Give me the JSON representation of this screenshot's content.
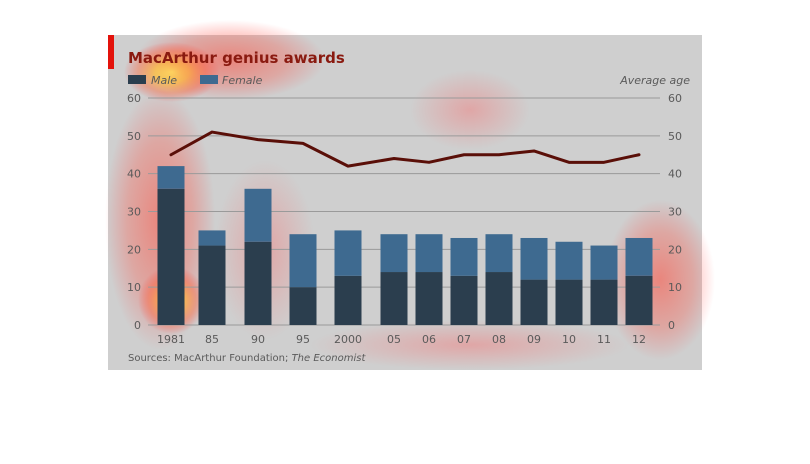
{
  "colors": {
    "background": "#ffffff",
    "panel": "#cfcfcf",
    "accent_red": "#e3120b",
    "grid": "#9a9a9a",
    "axis_text": "#5a5a5a",
    "title_text": "#8a1a10",
    "male_bar": "#2b3e4e",
    "female_bar": "#3e6a90",
    "age_line": "#5a0f08",
    "heat_core": "#ffff66",
    "heat_mid": "#ff5a3a",
    "heat_outer": "#ff3a3a"
  },
  "chart_data": {
    "type": "bar",
    "title": "MacArthur genius awards",
    "legend": [
      {
        "name": "Male",
        "key": "male"
      },
      {
        "name": "Female",
        "key": "female"
      }
    ],
    "right_axis_label": "Average age",
    "categories": [
      "1981",
      "85",
      "90",
      "95",
      "2000",
      "05",
      "06",
      "07",
      "08",
      "09",
      "10",
      "11",
      "12"
    ],
    "series": [
      {
        "name": "Male",
        "key": "male",
        "stack": "awards",
        "values": [
          36,
          21,
          22,
          10,
          13,
          14,
          14,
          13,
          14,
          12,
          12,
          12,
          13
        ]
      },
      {
        "name": "Female",
        "key": "female",
        "stack": "awards",
        "values": [
          6,
          4,
          14,
          14,
          12,
          10,
          10,
          10,
          10,
          11,
          10,
          9,
          10
        ]
      },
      {
        "name": "Average age",
        "key": "avg_age",
        "type": "line",
        "axis": "right",
        "values": [
          45,
          51,
          49,
          48,
          42,
          44,
          43,
          45,
          45,
          46,
          43,
          43,
          45
        ]
      }
    ],
    "ylim": [
      0,
      60
    ],
    "yticks": [
      0,
      10,
      20,
      30,
      40,
      50,
      60
    ],
    "y2lim": [
      0,
      60
    ],
    "y2ticks": [
      0,
      10,
      20,
      30,
      40,
      50,
      60
    ],
    "grid": true,
    "legend_placement": "top-left",
    "source_prefix": "Sources: MacArthur Foundation; ",
    "source_italic": "The Economist"
  }
}
